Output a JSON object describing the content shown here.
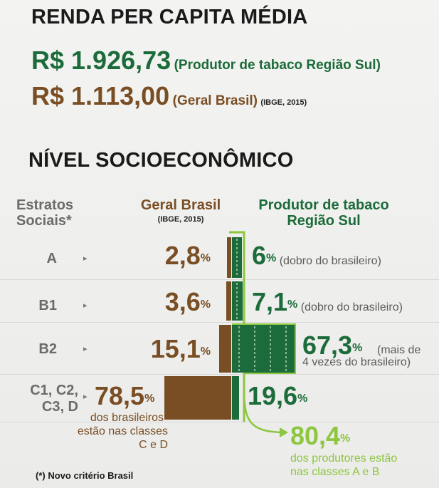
{
  "renda": {
    "title": "RENDA PER CAPITA MÉDIA",
    "produtor_value": "R$ 1.926,73",
    "produtor_label": "(Produtor de tabaco Região Sul)",
    "geral_value": "R$ 1.113,00",
    "geral_label": "(Geral Brasil)",
    "geral_source": "(IBGE, 2015)"
  },
  "nivel": {
    "title": "NÍVEL SOCIOECONÔMICO",
    "col_estratos": [
      "Estratos",
      "Sociais*"
    ],
    "col_geral": "Geral Brasil",
    "col_geral_source": "(IBGE, 2015)",
    "col_produtor": [
      "Produtor de tabaco",
      "Região Sul"
    ],
    "rows": [
      {
        "label": "A",
        "geral": "2,8",
        "produtor": "6",
        "note": "(dobro do brasileiro)"
      },
      {
        "label": "B1",
        "geral": "3,6",
        "produtor": "7,1",
        "note": "(dobro do brasileiro)"
      },
      {
        "label": "B2",
        "geral": "15,1",
        "produtor": "67,3",
        "note_line1": "(mais de",
        "note_line2": "4 vezes do brasileiro)"
      },
      {
        "label_line1": "C1, C2,",
        "label_line2": "C3, D",
        "geral": "78,5",
        "produtor": "19,6",
        "geral_note_line1": "dos brasileiros",
        "geral_note_line2": "estão nas classes C e D"
      }
    ],
    "percent_sign": "%",
    "summary_value": "80,4",
    "summary_line1": "dos produtores estão",
    "summary_line2": "nas classes A e B",
    "footnote": "(*) Novo critério Brasil"
  },
  "colors": {
    "green": "#1c6b3a",
    "brown": "#7a4e24",
    "lime": "#8dc63f"
  }
}
